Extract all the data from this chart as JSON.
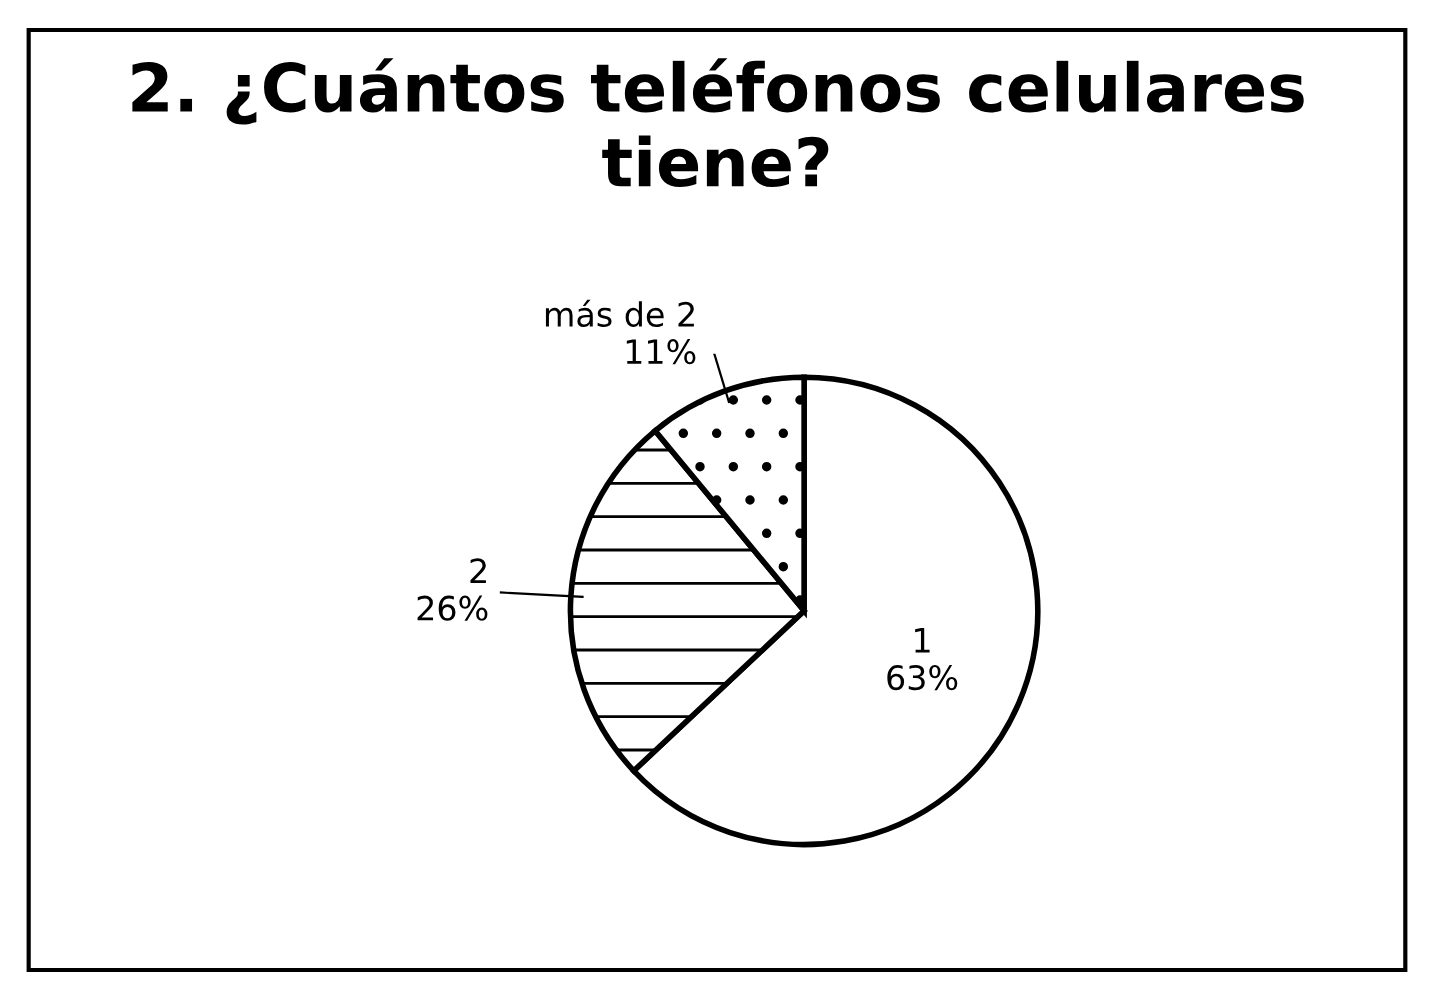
{
  "chart_data": {
    "type": "pie",
    "title": "2. ¿Cuántos teléfonos celulares tiene?",
    "categories": [
      "1",
      "2",
      "más de 2"
    ],
    "values": [
      63,
      26,
      11
    ],
    "value_labels": [
      "63%",
      "26%",
      "11%"
    ],
    "colors": [
      "#ffffff",
      "#ffffff",
      "#ffffff"
    ],
    "legend": false
  }
}
